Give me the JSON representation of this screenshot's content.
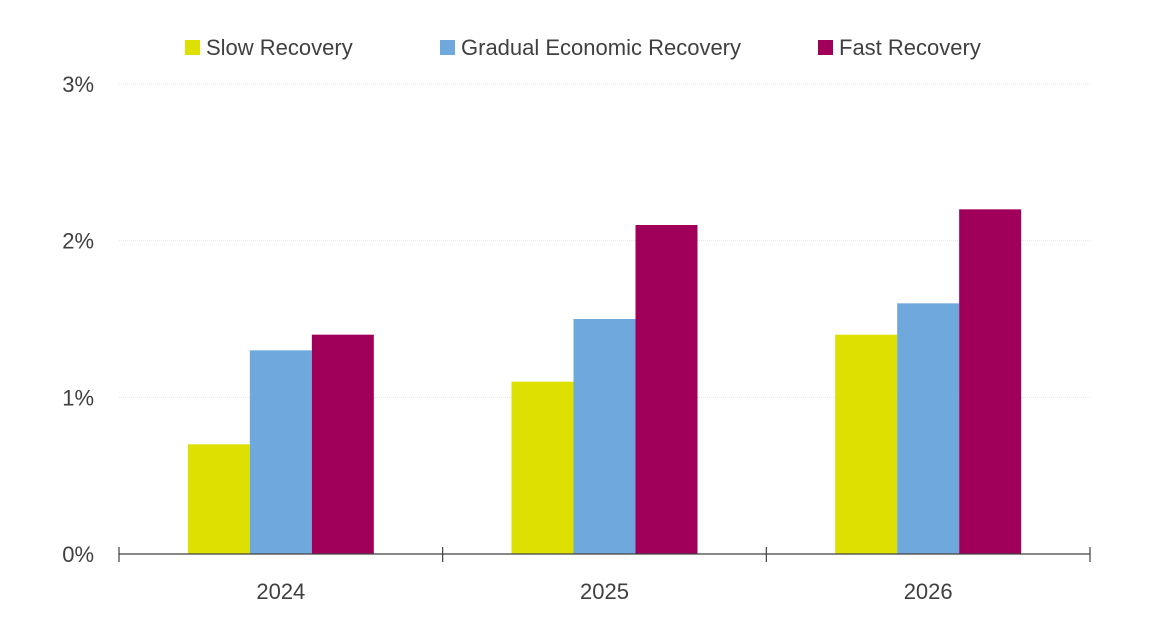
{
  "chart_data": {
    "type": "bar",
    "categories": [
      "2024",
      "2025",
      "2026"
    ],
    "series": [
      {
        "name": "Slow Recovery",
        "values": [
          0.7,
          1.1,
          1.4
        ],
        "color": "#dde000"
      },
      {
        "name": "Gradual Economic Recovery",
        "values": [
          1.3,
          1.5,
          1.6
        ],
        "color": "#6fa8dc"
      },
      {
        "name": "Fast Recovery",
        "values": [
          1.4,
          2.1,
          2.2
        ],
        "color": "#a0005a"
      }
    ],
    "y_ticks": [
      {
        "value": 0,
        "label": "0%"
      },
      {
        "value": 1,
        "label": "1%"
      },
      {
        "value": 2,
        "label": "2%"
      },
      {
        "value": 3,
        "label": "3%"
      }
    ],
    "ylim": [
      0,
      3
    ],
    "unit": "%",
    "grid": true,
    "legend_position": "top",
    "title": "",
    "xlabel": "",
    "ylabel": ""
  }
}
